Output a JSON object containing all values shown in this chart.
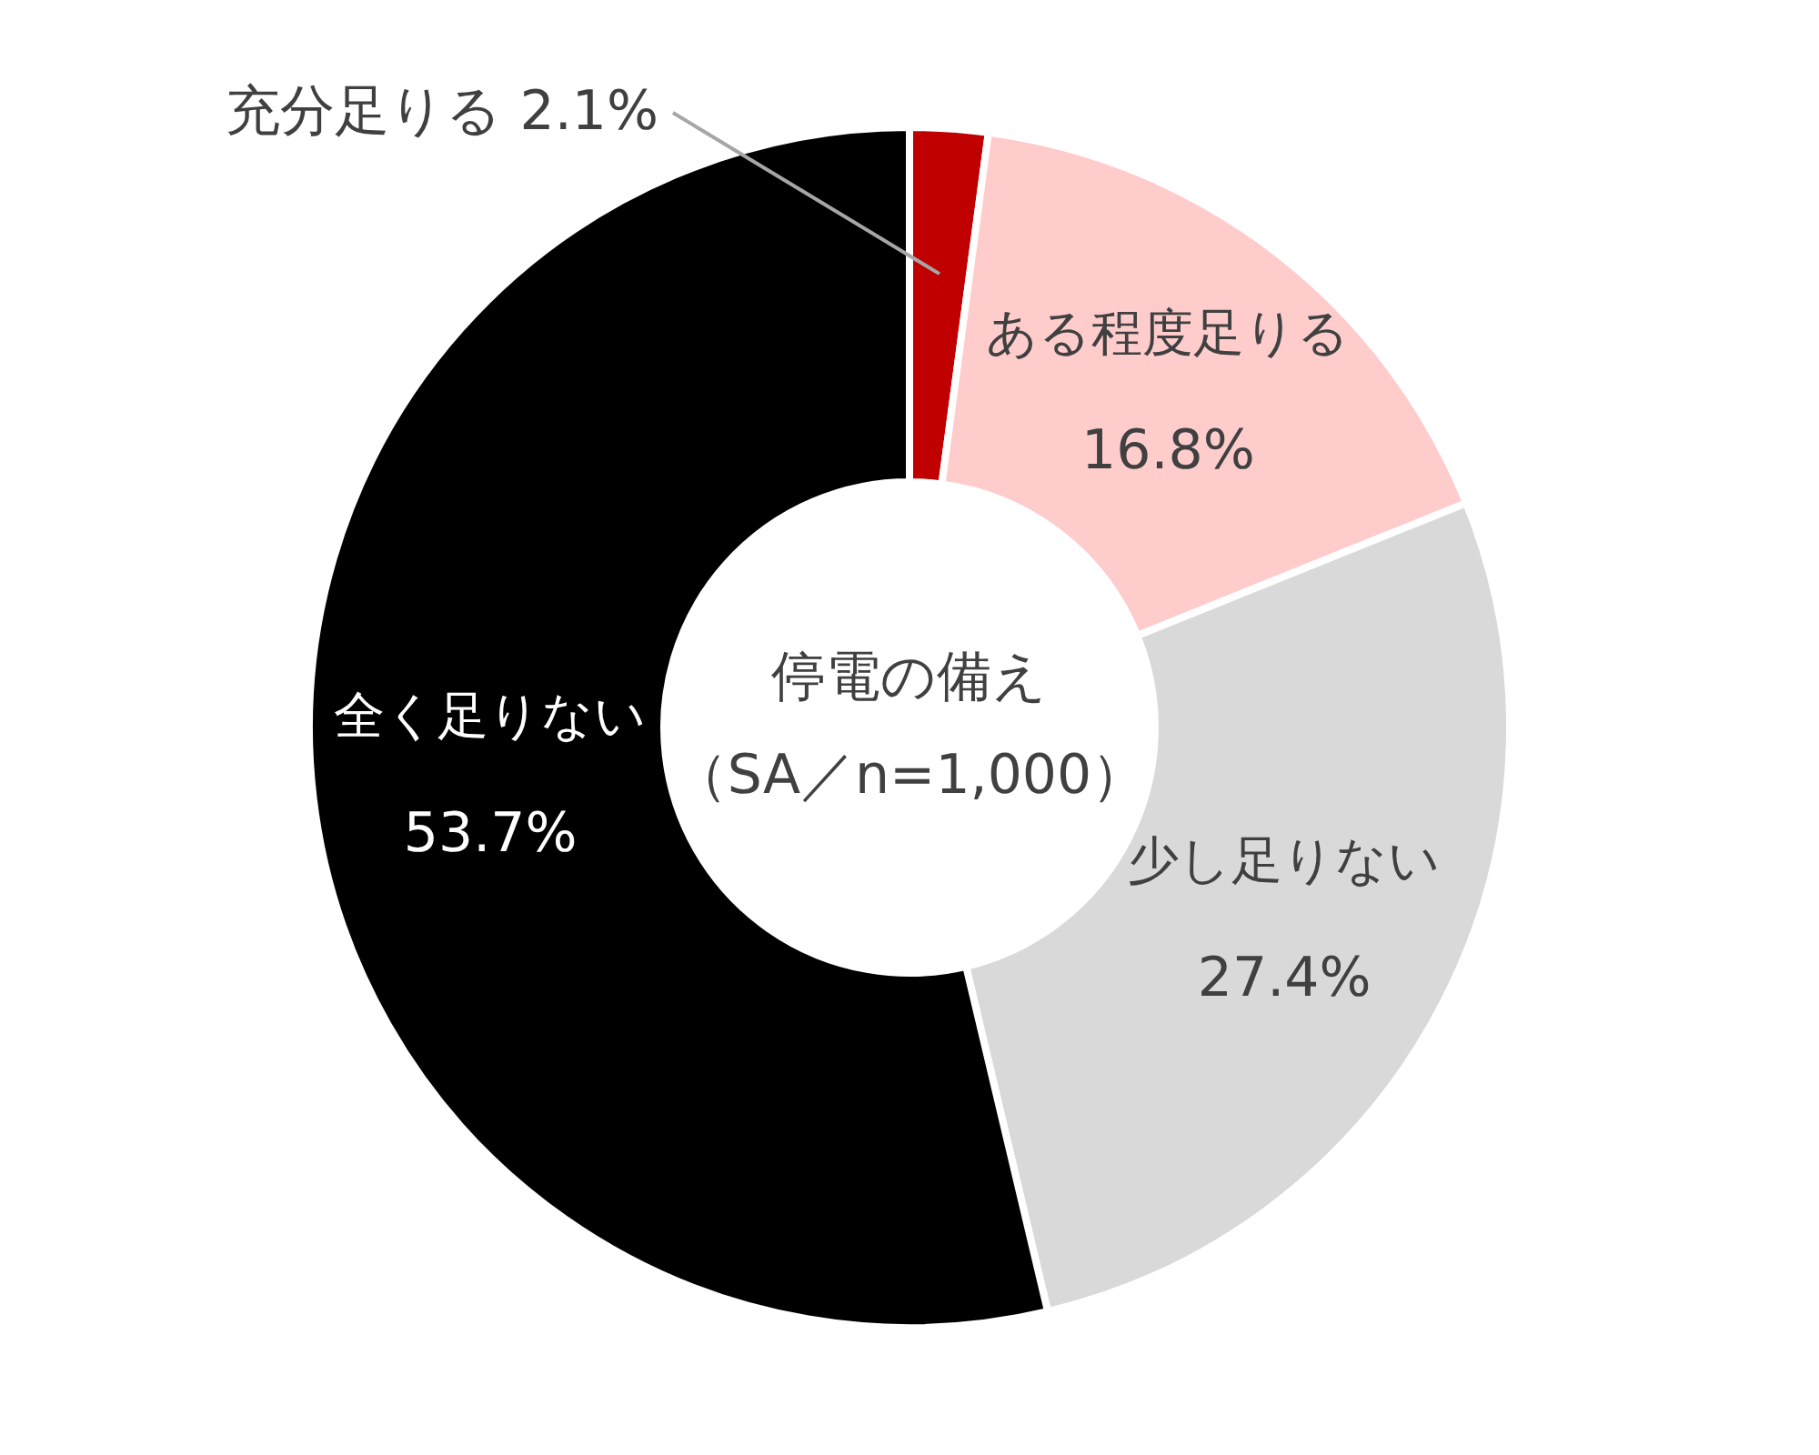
{
  "chart_data": {
    "type": "donut",
    "title": "停電の備え",
    "subtitle": "（SA／n=1,000）",
    "categories": [
      "充分足りる",
      "ある程度足りる",
      "少し足りない",
      "全く足りない"
    ],
    "values": [
      2.1,
      16.8,
      27.4,
      53.7
    ],
    "value_labels": [
      "2.1%",
      "16.8%",
      "27.4%",
      "53.7%"
    ],
    "colors": [
      "#c00000",
      "#ffcccc",
      "#d9d9d9",
      "#000000"
    ]
  }
}
